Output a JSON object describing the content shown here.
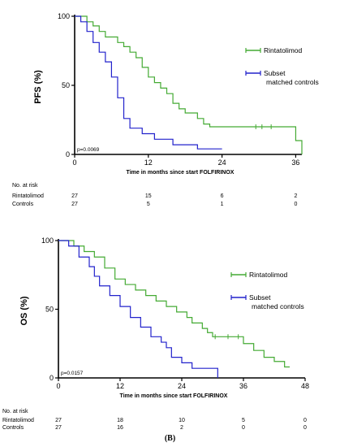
{
  "colors": {
    "rintatolimod": "#44aa33",
    "controls": "#2222cc",
    "axis": "#000000"
  },
  "caption": "(B)",
  "chart_data": [
    {
      "type": "line",
      "step": true,
      "ylabel": "PFS (%)",
      "xlabel": "Time in months since start FOLFIRINOX",
      "x_ticks": [
        "0",
        "12",
        "24",
        "36"
      ],
      "y_ticks": [
        "0",
        "50",
        "100"
      ],
      "xlim": [
        0,
        37
      ],
      "ylim": [
        0,
        100
      ],
      "p_value": "p=0.0069",
      "legend": [
        "Rintatolimod",
        "Subset\nmatched controls"
      ],
      "series": [
        {
          "name": "Rintatolimod",
          "x": [
            0,
            2,
            3,
            4,
            5,
            7,
            8,
            9,
            10,
            11,
            12,
            13,
            14,
            15,
            16,
            17,
            18,
            20,
            21,
            22,
            36,
            37
          ],
          "y": [
            100,
            96,
            93,
            89,
            85,
            81,
            78,
            74,
            70,
            63,
            56,
            52,
            48,
            44,
            37,
            33,
            30,
            26,
            22,
            20,
            10,
            0
          ],
          "censored": [
            [
              29.5,
              20
            ],
            [
              30.5,
              20
            ],
            [
              32,
              20
            ]
          ]
        },
        {
          "name": "Subset matched controls",
          "x": [
            0,
            1,
            2,
            3,
            4,
            5,
            6,
            7,
            8,
            9,
            11,
            13,
            16,
            20,
            24
          ],
          "y": [
            100,
            96,
            89,
            81,
            74,
            67,
            56,
            41,
            26,
            19,
            15,
            11,
            7,
            4,
            4
          ]
        }
      ],
      "at_risk": {
        "title": "No. at risk",
        "rows": [
          {
            "label": "Rintatolimod",
            "values": [
              "27",
              "15",
              "6",
              "2"
            ]
          },
          {
            "label": "Controls",
            "values": [
              "27",
              "5",
              "1",
              "0"
            ]
          }
        ]
      }
    },
    {
      "type": "line",
      "step": true,
      "ylabel": "OS (%)",
      "xlabel": "Time in months since start FOLFIRINOX",
      "x_ticks": [
        "0",
        "12",
        "24",
        "36",
        "48"
      ],
      "y_ticks": [
        "0",
        "50",
        "100"
      ],
      "xlim": [
        0,
        48
      ],
      "ylim": [
        0,
        100
      ],
      "p_value": "p=0.0157",
      "legend": [
        "Rintatolimod",
        "Subset\nmatched controls"
      ],
      "series": [
        {
          "name": "Rintatolimod",
          "x": [
            0,
            3,
            5,
            7,
            9,
            11,
            13,
            15,
            17,
            19,
            21,
            23,
            25,
            26,
            28,
            29,
            30,
            32,
            36,
            38,
            40,
            42,
            44,
            45
          ],
          "y": [
            100,
            96,
            92,
            88,
            80,
            72,
            68,
            64,
            60,
            56,
            52,
            48,
            44,
            40,
            36,
            33,
            30,
            30,
            25,
            20,
            15,
            12,
            8,
            8
          ],
          "censored": [
            [
              30.5,
              30
            ],
            [
              33,
              30
            ],
            [
              35,
              30
            ]
          ]
        },
        {
          "name": "Subset matched controls",
          "x": [
            0,
            2,
            4,
            6,
            7,
            8,
            10,
            12,
            14,
            16,
            18,
            20,
            21,
            22,
            24,
            26,
            30,
            31
          ],
          "y": [
            100,
            96,
            88,
            81,
            74,
            67,
            60,
            52,
            44,
            37,
            30,
            26,
            22,
            15,
            11,
            7,
            7,
            0
          ]
        }
      ],
      "at_risk": {
        "title": "No. at risk",
        "rows": [
          {
            "label": "Rintatolimod",
            "values": [
              "27",
              "18",
              "10",
              "5",
              "0"
            ]
          },
          {
            "label": "Controls",
            "values": [
              "27",
              "16",
              "2",
              "0",
              "0"
            ]
          }
        ]
      }
    }
  ]
}
